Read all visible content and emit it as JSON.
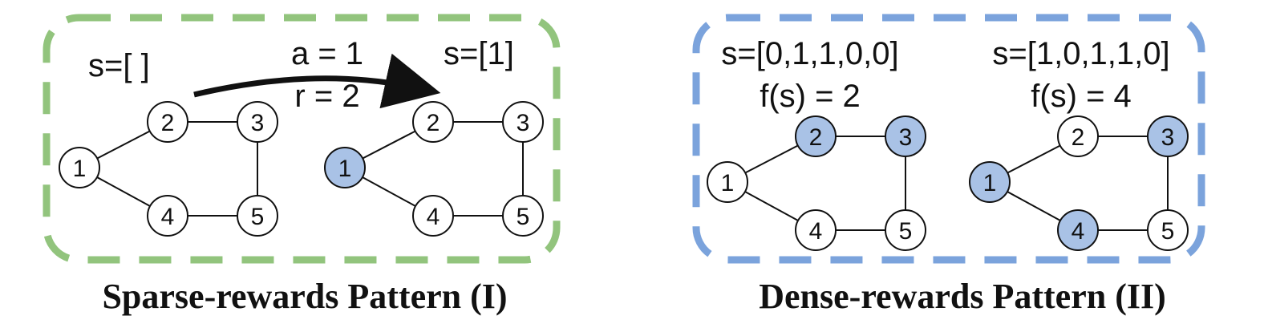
{
  "colors": {
    "sparse_border": "#92c47d",
    "dense_border": "#7ba3dc",
    "selected_fill": "#a9c2e6",
    "unselected_fill": "#ffffff",
    "line": "#111111"
  },
  "node_labels": [
    "1",
    "2",
    "3",
    "4",
    "5"
  ],
  "panels": {
    "sparse": {
      "caption": "Sparse-rewards Pattern (I)",
      "state_before": "s=[ ]",
      "state_after": "s=[1]",
      "action_label": "a = 1",
      "reward_label": "r = 2",
      "graph_before_selected": [],
      "graph_after_selected": [
        1
      ]
    },
    "dense": {
      "caption": "Dense-rewards Pattern (II)",
      "graph_a": {
        "state": "s=[0,1,1,0,0]",
        "score": "f(s) = 2",
        "selected": [
          2,
          3
        ]
      },
      "graph_b": {
        "state": "s=[1,0,1,1,0]",
        "score": "f(s) = 4",
        "selected": [
          1,
          3,
          4
        ]
      }
    }
  }
}
